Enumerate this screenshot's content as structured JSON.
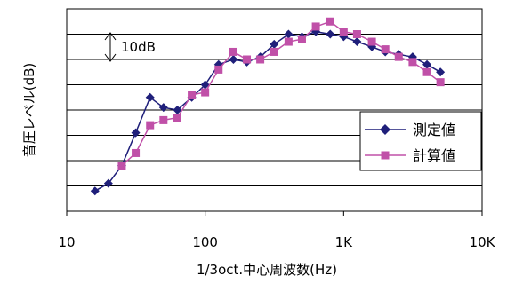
{
  "chart_data": {
    "type": "line",
    "xlabel": "1/3oct.中心周波数(Hz)",
    "ylabel": "音圧レベル(dB)",
    "x_scale": "log",
    "xlim": [
      10,
      10000
    ],
    "x_tick_labels": [
      {
        "value": 10,
        "label": "10"
      },
      {
        "value": 100,
        "label": "100"
      },
      {
        "value": 1000,
        "label": "1K"
      },
      {
        "value": 10000,
        "label": "10K"
      }
    ],
    "y_unit": "dB",
    "ylim": [
      0,
      80
    ],
    "y_grid_step": 10,
    "annotation": "10dB",
    "grid": true,
    "legend_position": "right",
    "series": [
      {
        "name": "測定値",
        "color": "#1f1f7a",
        "marker": "diamond",
        "x": [
          16,
          20,
          25,
          31.5,
          40,
          50,
          63,
          80,
          100,
          125,
          160,
          200,
          250,
          315,
          400,
          500,
          630,
          800,
          1000,
          1250,
          1600,
          2000,
          2500,
          3150,
          4000,
          5000
        ],
        "y": [
          8,
          11,
          18,
          31,
          45,
          41,
          40,
          45,
          50,
          58,
          60,
          59,
          61,
          66,
          70,
          69,
          71,
          70,
          69,
          67,
          65,
          63,
          62,
          61,
          58,
          55
        ]
      },
      {
        "name": "計算値",
        "color": "#c050a8",
        "marker": "square",
        "x": [
          25,
          31.5,
          40,
          50,
          63,
          80,
          100,
          125,
          160,
          200,
          250,
          315,
          400,
          500,
          630,
          800,
          1000,
          1250,
          1600,
          2000,
          2500,
          3150,
          4000,
          5000
        ],
        "y": [
          18,
          23,
          34,
          36,
          37,
          46,
          47,
          56,
          63,
          60,
          60,
          63,
          67,
          68,
          73,
          75,
          71,
          70,
          67,
          64,
          61,
          59,
          55,
          51
        ]
      }
    ]
  }
}
